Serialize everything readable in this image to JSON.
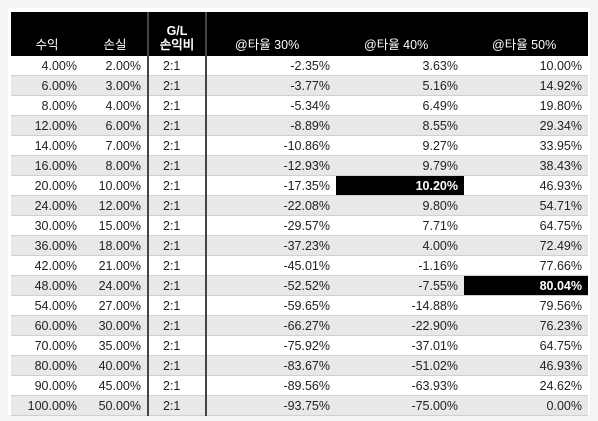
{
  "table": {
    "header": [
      "수익",
      "손실",
      "G/L\n손익비",
      "@타율 30%",
      "@타율 40%",
      "@타율 50%"
    ],
    "rows": [
      [
        "4.00%",
        "2.00%",
        "2:1",
        "-2.35%",
        "3.63%",
        "10.00%"
      ],
      [
        "6.00%",
        "3.00%",
        "2:1",
        "-3.77%",
        "5.16%",
        "14.92%"
      ],
      [
        "8.00%",
        "4.00%",
        "2:1",
        "-5.34%",
        "6.49%",
        "19.80%"
      ],
      [
        "12.00%",
        "6.00%",
        "2:1",
        "-8.89%",
        "8.55%",
        "29.34%"
      ],
      [
        "14.00%",
        "7.00%",
        "2:1",
        "-10.86%",
        "9.27%",
        "33.95%"
      ],
      [
        "16.00%",
        "8.00%",
        "2:1",
        "-12.93%",
        "9.79%",
        "38.43%"
      ],
      [
        "20.00%",
        "10.00%",
        "2:1",
        "-17.35%",
        "10.20%",
        "46.93%"
      ],
      [
        "24.00%",
        "12.00%",
        "2:1",
        "-22.08%",
        "9.80%",
        "54.71%"
      ],
      [
        "30.00%",
        "15.00%",
        "2:1",
        "-29.57%",
        "7.71%",
        "64.75%"
      ],
      [
        "36.00%",
        "18.00%",
        "2:1",
        "-37.23%",
        "4.00%",
        "72.49%"
      ],
      [
        "42.00%",
        "21.00%",
        "2:1",
        "-45.01%",
        "-1.16%",
        "77.66%"
      ],
      [
        "48.00%",
        "24.00%",
        "2:1",
        "-52.52%",
        "-7.55%",
        "80.04%"
      ],
      [
        "54.00%",
        "27.00%",
        "2:1",
        "-59.65%",
        "-14.88%",
        "79.56%"
      ],
      [
        "60.00%",
        "30.00%",
        "2:1",
        "-66.27%",
        "-22.90%",
        "76.23%"
      ],
      [
        "70.00%",
        "35.00%",
        "2:1",
        "-75.92%",
        "-37.01%",
        "64.75%"
      ],
      [
        "80.00%",
        "40.00%",
        "2:1",
        "-83.67%",
        "-51.02%",
        "46.93%"
      ],
      [
        "90.00%",
        "45.00%",
        "2:1",
        "-89.56%",
        "-63.93%",
        "24.62%"
      ],
      [
        "100.00%",
        "50.00%",
        "2:1",
        "-93.75%",
        "-75.00%",
        "0.00%"
      ]
    ],
    "highlighted": [
      {
        "row": 6,
        "col": 4
      },
      {
        "row": 11,
        "col": 5
      }
    ]
  }
}
